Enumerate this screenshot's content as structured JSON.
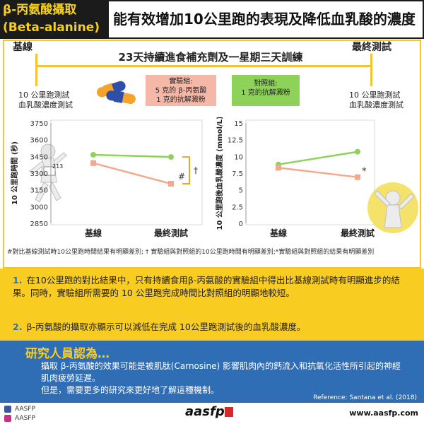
{
  "header": {
    "title_line1": "β-丙氨酸攝取",
    "title_line2": "(Beta-alanine)",
    "subtitle": "能有效增加10公里跑的表現及降低血乳酸的濃度"
  },
  "timeline": {
    "start_label": "基線",
    "end_label": "最終測試",
    "banner": "23天持續進食補充劑及一星期三天訓練",
    "start_tests": [
      "10 公里跑測試",
      "血乳酸濃度測試"
    ],
    "end_tests": [
      "10 公里跑測試",
      "血乳酸濃度測試"
    ],
    "experimental_group": {
      "title": "實驗組:",
      "line1": "5 克的 β-丙氨酸",
      "line2": "1 克的抗解澱粉"
    },
    "control_group": {
      "title": "對照組:",
      "line1": "1 克的抗解澱粉"
    }
  },
  "chart_data": [
    {
      "type": "line",
      "ylabel": "10 公里跑時間 (秒)",
      "categories": [
        "基線",
        "最終測試"
      ],
      "ylim": [
        2850,
        3750
      ],
      "yticks": [
        2850,
        3000,
        3150,
        3300,
        3450,
        3600,
        3750
      ],
      "series": [
        {
          "values": [
            3465,
            3445
          ],
          "color": "#8dd35a"
        },
        {
          "values": [
            3390,
            3205
          ],
          "color": "#f5a88e"
        }
      ],
      "annotations": [
        "#",
        "†"
      ]
    },
    {
      "type": "line",
      "ylabel": "10 公里跑後血乳酸濃度 (mmol/L)",
      "categories": [
        "基線",
        "最終測試"
      ],
      "ylim": [
        0,
        15
      ],
      "yticks": [
        0,
        2.5,
        5,
        7.5,
        10,
        12.5,
        15
      ],
      "series": [
        {
          "values": [
            8.8,
            10.7
          ],
          "color": "#8dd35a"
        },
        {
          "values": [
            8.3,
            6.9
          ],
          "color": "#f5a88e"
        }
      ],
      "annotations": [
        "*"
      ]
    }
  ],
  "runner_bib": "213",
  "footnote": "#對比基線測試時10公里跑時間結果有明顯差別; † 實驗組與對照組的10公里跑時間有明顯差別;*實驗組與對照組的結果有明顯差別",
  "points": [
    {
      "num": "1.",
      "text": "在10公里跑的對比結果中，只有持續食用β-丙氨酸的實驗組中得出比基線測試時有明顯進步的結果。同時，實驗組所需要的 10 公里跑完成時間比對照組的明顯地較短。"
    },
    {
      "num": "2.",
      "text": "β-丙氨酸的攝取亦顯示可以減低在完成 10公里跑測試後的血乳酸濃度。"
    }
  ],
  "researchers": {
    "title": "研究人員認為…",
    "body1": "攝取 β-丙氨酸的效果可能是被肌肽(Carnosine) 影響肌肉內的鈣流入和抗氧化活性所引起的神經肌肉疲勞延遲。",
    "body2": "但是，需要更多的研究來更好地了解這種機制。",
    "reference": "Reference: Santana et al. (2018)"
  },
  "footer": {
    "facebook": "AASFP",
    "instagram": "AASFP",
    "logo": "aasfp",
    "website": "www.aasfp.com"
  },
  "colors": {
    "yellow": "#f9cc21",
    "blue": "#2f6db5",
    "green": "#8dd35a",
    "salmon": "#f5a88e"
  }
}
